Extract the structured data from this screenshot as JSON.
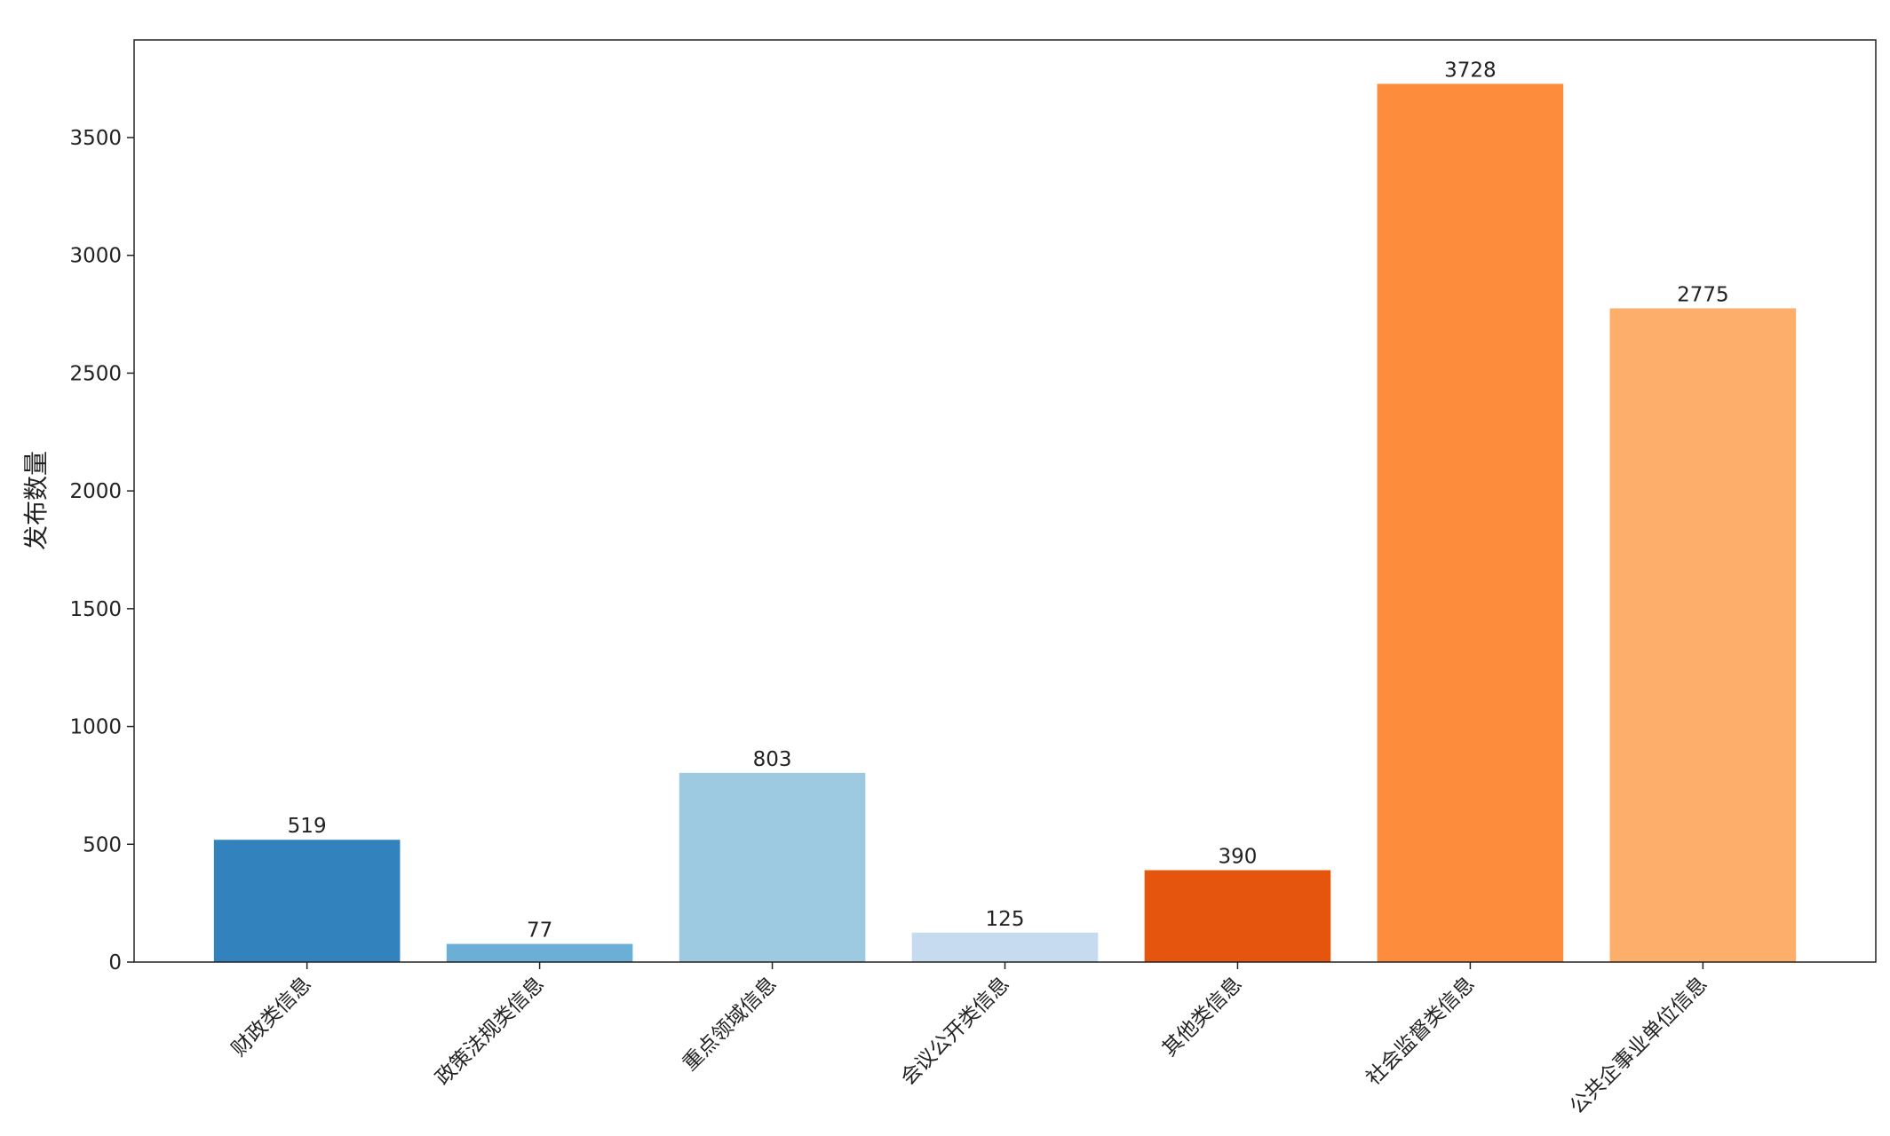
{
  "chart_data": {
    "type": "bar",
    "y_label": "发布数量",
    "categories": [
      "财政类信息",
      "政策法规类信息",
      "重点领域信息",
      "会议公开类信息",
      "其他类信息",
      "社会监督类信息",
      "公共企事业单位信息"
    ],
    "values": [
      519,
      77,
      803,
      125,
      390,
      3728,
      2775
    ],
    "colors": [
      "#3182bd",
      "#6baed6",
      "#9ecae1",
      "#c6dbef",
      "#e6550d",
      "#fd8d3c",
      "#fdae6b"
    ],
    "ylim": [
      0,
      3914.4
    ],
    "yticks": [
      0,
      500,
      1000,
      1500,
      2000,
      2500,
      3000,
      3500
    ]
  }
}
